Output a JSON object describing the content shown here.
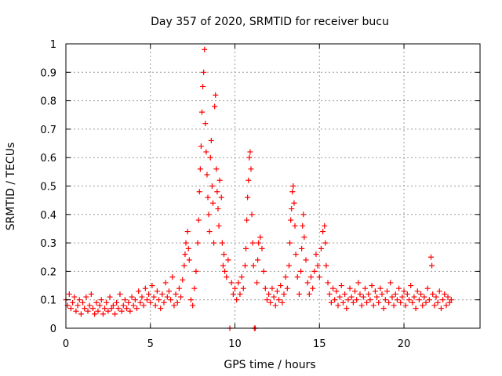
{
  "chart_data": {
    "type": "scatter",
    "title": "Day 357 of 2020, SRMTID for receiver bucu",
    "xlabel": "GPS time / hours",
    "ylabel": "SRMTID / TECUs",
    "xlim": [
      0,
      24.5
    ],
    "ylim": [
      0,
      1
    ],
    "xticks": [
      0,
      5,
      10,
      15,
      20
    ],
    "xtick_labels": [
      "0",
      "5",
      "10",
      "15",
      "20"
    ],
    "yticks": [
      0,
      0.1,
      0.2,
      0.3,
      0.4,
      0.5,
      0.6,
      0.7,
      0.8,
      0.9,
      1
    ],
    "ytick_labels": [
      "0",
      "0.1",
      "0.2",
      "0.3",
      "0.4",
      "0.5",
      "0.6",
      "0.7",
      "0.8",
      "0.9",
      "1"
    ],
    "grid": true,
    "color": "#ff0000",
    "series": [
      {
        "name": "SRMTID",
        "marker": "plus",
        "points": [
          [
            0.0,
            0.1
          ],
          [
            0.1,
            0.08
          ],
          [
            0.2,
            0.12
          ],
          [
            0.3,
            0.07
          ],
          [
            0.4,
            0.09
          ],
          [
            0.5,
            0.11
          ],
          [
            0.6,
            0.06
          ],
          [
            0.7,
            0.08
          ],
          [
            0.8,
            0.1
          ],
          [
            0.9,
            0.05
          ],
          [
            1.0,
            0.09
          ],
          [
            1.1,
            0.07
          ],
          [
            1.2,
            0.11
          ],
          [
            1.3,
            0.06
          ],
          [
            1.4,
            0.08
          ],
          [
            1.5,
            0.12
          ],
          [
            1.6,
            0.07
          ],
          [
            1.7,
            0.05
          ],
          [
            1.8,
            0.09
          ],
          [
            1.9,
            0.06
          ],
          [
            2.0,
            0.08
          ],
          [
            2.1,
            0.1
          ],
          [
            2.2,
            0.05
          ],
          [
            2.3,
            0.07
          ],
          [
            2.4,
            0.09
          ],
          [
            2.5,
            0.06
          ],
          [
            2.6,
            0.11
          ],
          [
            2.7,
            0.07
          ],
          [
            2.8,
            0.08
          ],
          [
            2.9,
            0.05
          ],
          [
            3.0,
            0.09
          ],
          [
            3.1,
            0.07
          ],
          [
            3.2,
            0.12
          ],
          [
            3.3,
            0.06
          ],
          [
            3.4,
            0.08
          ],
          [
            3.5,
            0.1
          ],
          [
            3.6,
            0.07
          ],
          [
            3.7,
            0.09
          ],
          [
            3.8,
            0.06
          ],
          [
            3.9,
            0.11
          ],
          [
            4.0,
            0.08
          ],
          [
            4.1,
            0.1
          ],
          [
            4.2,
            0.07
          ],
          [
            4.3,
            0.13
          ],
          [
            4.4,
            0.09
          ],
          [
            4.5,
            0.11
          ],
          [
            4.6,
            0.08
          ],
          [
            4.7,
            0.14
          ],
          [
            4.8,
            0.1
          ],
          [
            4.9,
            0.12
          ],
          [
            5.0,
            0.09
          ],
          [
            5.1,
            0.15
          ],
          [
            5.2,
            0.11
          ],
          [
            5.3,
            0.08
          ],
          [
            5.4,
            0.13
          ],
          [
            5.5,
            0.1
          ],
          [
            5.6,
            0.07
          ],
          [
            5.7,
            0.12
          ],
          [
            5.8,
            0.09
          ],
          [
            5.9,
            0.16
          ],
          [
            6.0,
            0.11
          ],
          [
            6.1,
            0.13
          ],
          [
            6.2,
            0.1
          ],
          [
            6.3,
            0.18
          ],
          [
            6.4,
            0.08
          ],
          [
            6.5,
            0.12
          ],
          [
            6.6,
            0.09
          ],
          [
            6.7,
            0.14
          ],
          [
            6.8,
            0.11
          ],
          [
            6.9,
            0.17
          ],
          [
            7.0,
            0.22
          ],
          [
            7.05,
            0.26
          ],
          [
            7.1,
            0.3
          ],
          [
            7.2,
            0.34
          ],
          [
            7.25,
            0.28
          ],
          [
            7.3,
            0.24
          ],
          [
            7.4,
            0.1
          ],
          [
            7.5,
            0.08
          ],
          [
            7.6,
            0.14
          ],
          [
            7.7,
            0.2
          ],
          [
            7.8,
            0.3
          ],
          [
            7.85,
            0.38
          ],
          [
            7.9,
            0.48
          ],
          [
            7.95,
            0.56
          ],
          [
            8.0,
            0.64
          ],
          [
            8.05,
            0.76
          ],
          [
            8.1,
            0.85
          ],
          [
            8.15,
            0.9
          ],
          [
            8.2,
            0.98
          ],
          [
            8.25,
            0.72
          ],
          [
            8.3,
            0.62
          ],
          [
            8.35,
            0.54
          ],
          [
            8.4,
            0.46
          ],
          [
            8.45,
            0.4
          ],
          [
            8.5,
            0.34
          ],
          [
            8.55,
            0.6
          ],
          [
            8.6,
            0.66
          ],
          [
            8.65,
            0.5
          ],
          [
            8.7,
            0.44
          ],
          [
            8.75,
            0.3
          ],
          [
            8.8,
            0.78
          ],
          [
            8.85,
            0.82
          ],
          [
            8.9,
            0.56
          ],
          [
            8.95,
            0.48
          ],
          [
            9.0,
            0.42
          ],
          [
            9.05,
            0.36
          ],
          [
            9.1,
            0.52
          ],
          [
            9.2,
            0.46
          ],
          [
            9.25,
            0.3
          ],
          [
            9.3,
            0.22
          ],
          [
            9.35,
            0.26
          ],
          [
            9.4,
            0.2
          ],
          [
            9.5,
            0.18
          ],
          [
            9.6,
            0.24
          ],
          [
            9.7,
            0.0
          ],
          [
            9.8,
            0.16
          ],
          [
            9.9,
            0.12
          ],
          [
            10.0,
            0.14
          ],
          [
            10.1,
            0.1
          ],
          [
            10.2,
            0.16
          ],
          [
            10.3,
            0.12
          ],
          [
            10.4,
            0.18
          ],
          [
            10.5,
            0.14
          ],
          [
            10.6,
            0.22
          ],
          [
            10.65,
            0.28
          ],
          [
            10.7,
            0.38
          ],
          [
            10.75,
            0.46
          ],
          [
            10.8,
            0.52
          ],
          [
            10.85,
            0.6
          ],
          [
            10.9,
            0.62
          ],
          [
            10.95,
            0.56
          ],
          [
            11.0,
            0.4
          ],
          [
            11.05,
            0.3
          ],
          [
            11.1,
            0.22
          ],
          [
            11.15,
            0.0
          ],
          [
            11.2,
            0.0
          ],
          [
            11.3,
            0.16
          ],
          [
            11.35,
            0.24
          ],
          [
            11.4,
            0.3
          ],
          [
            11.5,
            0.32
          ],
          [
            11.6,
            0.28
          ],
          [
            11.7,
            0.2
          ],
          [
            11.8,
            0.14
          ],
          [
            11.9,
            0.1
          ],
          [
            12.0,
            0.12
          ],
          [
            12.1,
            0.09
          ],
          [
            12.2,
            0.14
          ],
          [
            12.3,
            0.11
          ],
          [
            12.4,
            0.08
          ],
          [
            12.5,
            0.13
          ],
          [
            12.6,
            0.1
          ],
          [
            12.7,
            0.15
          ],
          [
            12.8,
            0.09
          ],
          [
            12.9,
            0.12
          ],
          [
            13.0,
            0.18
          ],
          [
            13.1,
            0.14
          ],
          [
            13.2,
            0.22
          ],
          [
            13.25,
            0.3
          ],
          [
            13.3,
            0.38
          ],
          [
            13.35,
            0.42
          ],
          [
            13.4,
            0.48
          ],
          [
            13.45,
            0.5
          ],
          [
            13.5,
            0.44
          ],
          [
            13.55,
            0.36
          ],
          [
            13.6,
            0.26
          ],
          [
            13.7,
            0.18
          ],
          [
            13.8,
            0.12
          ],
          [
            13.9,
            0.2
          ],
          [
            13.95,
            0.28
          ],
          [
            14.0,
            0.36
          ],
          [
            14.05,
            0.4
          ],
          [
            14.1,
            0.32
          ],
          [
            14.2,
            0.24
          ],
          [
            14.3,
            0.16
          ],
          [
            14.4,
            0.12
          ],
          [
            14.5,
            0.18
          ],
          [
            14.6,
            0.14
          ],
          [
            14.7,
            0.2
          ],
          [
            14.8,
            0.26
          ],
          [
            14.9,
            0.22
          ],
          [
            15.0,
            0.18
          ],
          [
            15.1,
            0.28
          ],
          [
            15.2,
            0.34
          ],
          [
            15.3,
            0.36
          ],
          [
            15.35,
            0.3
          ],
          [
            15.4,
            0.22
          ],
          [
            15.5,
            0.16
          ],
          [
            15.6,
            0.12
          ],
          [
            15.7,
            0.09
          ],
          [
            15.8,
            0.14
          ],
          [
            15.9,
            0.1
          ],
          [
            16.0,
            0.13
          ],
          [
            16.1,
            0.08
          ],
          [
            16.2,
            0.11
          ],
          [
            16.3,
            0.15
          ],
          [
            16.4,
            0.09
          ],
          [
            16.5,
            0.12
          ],
          [
            16.6,
            0.07
          ],
          [
            16.7,
            0.1
          ],
          [
            16.8,
            0.14
          ],
          [
            16.9,
            0.11
          ],
          [
            17.0,
            0.09
          ],
          [
            17.1,
            0.13
          ],
          [
            17.2,
            0.1
          ],
          [
            17.3,
            0.16
          ],
          [
            17.4,
            0.12
          ],
          [
            17.5,
            0.08
          ],
          [
            17.6,
            0.11
          ],
          [
            17.7,
            0.14
          ],
          [
            17.8,
            0.09
          ],
          [
            17.9,
            0.12
          ],
          [
            18.0,
            0.1
          ],
          [
            18.1,
            0.15
          ],
          [
            18.2,
            0.08
          ],
          [
            18.3,
            0.13
          ],
          [
            18.4,
            0.11
          ],
          [
            18.5,
            0.09
          ],
          [
            18.6,
            0.14
          ],
          [
            18.7,
            0.12
          ],
          [
            18.8,
            0.07
          ],
          [
            18.9,
            0.1
          ],
          [
            19.0,
            0.13
          ],
          [
            19.1,
            0.09
          ],
          [
            19.2,
            0.16
          ],
          [
            19.3,
            0.11
          ],
          [
            19.4,
            0.08
          ],
          [
            19.5,
            0.12
          ],
          [
            19.6,
            0.1
          ],
          [
            19.7,
            0.14
          ],
          [
            19.8,
            0.09
          ],
          [
            19.9,
            0.11
          ],
          [
            20.0,
            0.13
          ],
          [
            20.1,
            0.08
          ],
          [
            20.2,
            0.12
          ],
          [
            20.3,
            0.1
          ],
          [
            20.4,
            0.15
          ],
          [
            20.5,
            0.09
          ],
          [
            20.6,
            0.11
          ],
          [
            20.7,
            0.07
          ],
          [
            20.8,
            0.13
          ],
          [
            20.9,
            0.1
          ],
          [
            21.0,
            0.12
          ],
          [
            21.1,
            0.08
          ],
          [
            21.2,
            0.11
          ],
          [
            21.3,
            0.09
          ],
          [
            21.4,
            0.14
          ],
          [
            21.5,
            0.1
          ],
          [
            21.6,
            0.25
          ],
          [
            21.65,
            0.22
          ],
          [
            21.7,
            0.12
          ],
          [
            21.8,
            0.08
          ],
          [
            21.9,
            0.11
          ],
          [
            22.0,
            0.09
          ],
          [
            22.1,
            0.13
          ],
          [
            22.2,
            0.07
          ],
          [
            22.3,
            0.1
          ],
          [
            22.4,
            0.12
          ],
          [
            22.5,
            0.08
          ],
          [
            22.6,
            0.11
          ],
          [
            22.7,
            0.09
          ],
          [
            22.8,
            0.1
          ]
        ]
      }
    ]
  }
}
